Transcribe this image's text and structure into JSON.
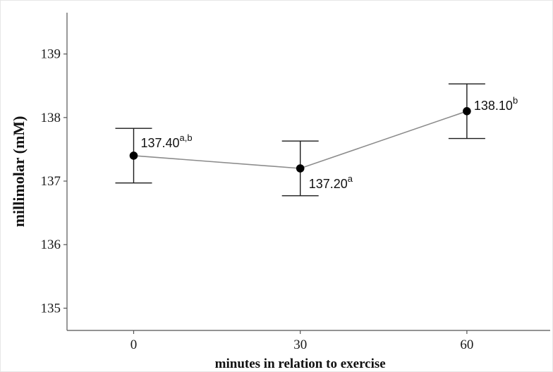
{
  "chart_data": {
    "type": "line",
    "xlabel": "minutes in relation to exercise",
    "ylabel": "millimolar (mM)",
    "ylim": [
      134.65,
      139.65
    ],
    "xlim": [
      -12,
      75
    ],
    "x_ticks": [
      0,
      30,
      60
    ],
    "y_ticks": [
      135,
      136,
      137,
      138,
      139
    ],
    "grid": false,
    "points": [
      {
        "x": 0,
        "y": 137.4,
        "error_low": 136.97,
        "error_high": 137.83,
        "label": "137.40",
        "superscript": "a,b"
      },
      {
        "x": 30,
        "y": 137.2,
        "error_low": 136.77,
        "error_high": 137.63,
        "label": "137.20",
        "superscript": "a"
      },
      {
        "x": 60,
        "y": 138.1,
        "error_low": 137.67,
        "error_high": 138.53,
        "label": "138.10",
        "superscript": "b"
      }
    ],
    "colors": {
      "line": "#8c8c8c",
      "marker": "#000000",
      "errorbar": "#1a1a1a",
      "axis": "#555555",
      "text": "#111111"
    }
  }
}
